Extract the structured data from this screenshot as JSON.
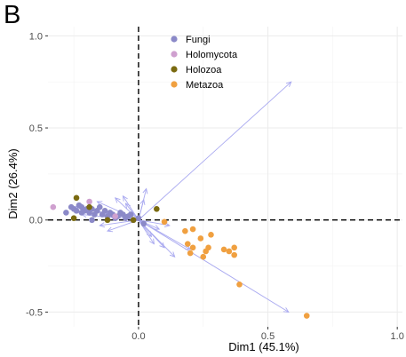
{
  "panel_label": "B",
  "chart_data": {
    "type": "scatter",
    "xlabel": "Dim1 (45.1%)",
    "ylabel": "Dim2 (26.4%)",
    "xlim": [
      -0.35,
      1.02
    ],
    "ylim": [
      -0.58,
      1.05
    ],
    "x_ticks": [
      0.0,
      0.5,
      1.0
    ],
    "x_tick_labels": [
      "0.0",
      "0.5",
      "1.0"
    ],
    "y_ticks": [
      -0.5,
      0.0,
      0.5,
      1.0
    ],
    "y_tick_labels": [
      "-0.5",
      "0.0",
      "0.5",
      "1.0"
    ],
    "grid": true,
    "legend_position": "top-center",
    "reference_lines": {
      "x": 0,
      "y": 0
    },
    "series": [
      {
        "name": "Fungi",
        "color": "#8b89c8",
        "points": [
          [
            -0.28,
            0.04
          ],
          [
            -0.26,
            0.07
          ],
          [
            -0.25,
            0.06
          ],
          [
            -0.24,
            0.05
          ],
          [
            -0.23,
            0.08
          ],
          [
            -0.22,
            0.07
          ],
          [
            -0.21,
            0.05
          ],
          [
            -0.2,
            0.06
          ],
          [
            -0.19,
            0.04
          ],
          [
            -0.18,
            0.06
          ],
          [
            -0.17,
            0.03
          ],
          [
            -0.16,
            0.05
          ],
          [
            -0.15,
            0.07
          ],
          [
            -0.14,
            0.03
          ],
          [
            -0.13,
            0.05
          ],
          [
            -0.12,
            0.02
          ],
          [
            -0.11,
            0.04
          ],
          [
            -0.1,
            0.03
          ],
          [
            -0.09,
            0.01
          ],
          [
            -0.08,
            0.02
          ],
          [
            -0.07,
            0.04
          ],
          [
            -0.06,
            0.03
          ],
          [
            -0.05,
            0.01
          ],
          [
            -0.04,
            0.02
          ],
          [
            -0.03,
            0.03
          ],
          [
            -0.02,
            0.0
          ],
          [
            0.0,
            0.01
          ],
          [
            0.02,
            -0.02
          ],
          [
            -0.22,
            0.04
          ],
          [
            -0.18,
            0.0
          ]
        ]
      },
      {
        "name": "Holomycota",
        "color": "#cfa0cf",
        "points": [
          [
            -0.33,
            0.07
          ],
          [
            -0.19,
            0.1
          ],
          [
            -0.09,
            0.02
          ]
        ]
      },
      {
        "name": "Holozoa",
        "color": "#7a6a10",
        "points": [
          [
            -0.24,
            0.12
          ],
          [
            -0.25,
            0.01
          ],
          [
            -0.19,
            0.07
          ],
          [
            -0.12,
            0.0
          ],
          [
            -0.02,
            0.0
          ],
          [
            0.07,
            0.06
          ]
        ]
      },
      {
        "name": "Metazoa",
        "color": "#f0a040",
        "points": [
          [
            0.1,
            -0.01
          ],
          [
            0.18,
            -0.06
          ],
          [
            0.21,
            -0.05
          ],
          [
            0.19,
            -0.13
          ],
          [
            0.21,
            -0.15
          ],
          [
            0.2,
            -0.18
          ],
          [
            0.24,
            -0.1
          ],
          [
            0.25,
            -0.2
          ],
          [
            0.26,
            -0.17
          ],
          [
            0.27,
            -0.15
          ],
          [
            0.33,
            -0.16
          ],
          [
            0.35,
            -0.17
          ],
          [
            0.37,
            -0.15
          ],
          [
            0.37,
            -0.19
          ],
          [
            0.39,
            -0.35
          ],
          [
            0.65,
            -0.52
          ],
          [
            0.28,
            -0.08
          ]
        ]
      }
    ],
    "arrows": {
      "color": "#a9a9f0",
      "vectors": [
        [
          0.59,
          0.75
        ],
        [
          0.58,
          -0.5
        ],
        [
          0.1,
          -0.15
        ],
        [
          0.14,
          -0.2
        ],
        [
          0.2,
          -0.16
        ],
        [
          0.06,
          -0.13
        ],
        [
          0.03,
          0.17
        ],
        [
          -0.06,
          0.13
        ],
        [
          -0.05,
          0.09
        ],
        [
          -0.16,
          0.1
        ],
        [
          -0.2,
          0.06
        ],
        [
          -0.22,
          0.03
        ],
        [
          -0.15,
          -0.03
        ],
        [
          -0.12,
          -0.06
        ],
        [
          0.05,
          -0.09
        ],
        [
          0.08,
          -0.05
        ],
        [
          0.02,
          0.11
        ],
        [
          -0.09,
          0.12
        ],
        [
          -0.25,
          0.07
        ],
        [
          0.12,
          -0.03
        ]
      ]
    }
  }
}
